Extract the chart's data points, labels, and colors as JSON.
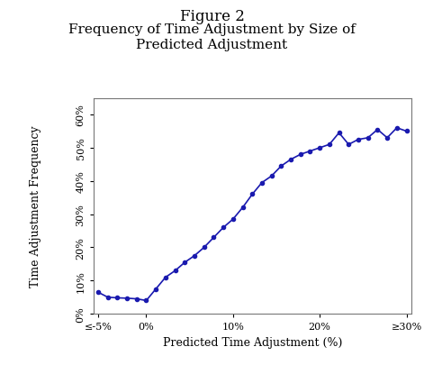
{
  "title_line1": "Figure 2",
  "title_line2": "Frequency of Time Adjustment by Size of\nPredicted Adjustment",
  "xlabel": "Predicted Time Adjustment (%)",
  "ylabel": "Time Adjustment Frequency",
  "line_color": "#1a1aaf",
  "marker": "o",
  "marker_size": 3,
  "background_color": "#ffffff",
  "plot_bg_color": "#ffffff",
  "x_tick_labels": [
    "≤-5%",
    "0%",
    "10%",
    "20%",
    "≥30%"
  ],
  "x_tick_positions": [
    0,
    5,
    14,
    23,
    32
  ],
  "ylim": [
    0,
    0.65
  ],
  "yticks": [
    0.0,
    0.1,
    0.2,
    0.3,
    0.4,
    0.5,
    0.6
  ],
  "ytick_labels": [
    "0%",
    "10%",
    "20%",
    "30%",
    "40%",
    "50%",
    "60%"
  ],
  "x_values": [
    0,
    1,
    2,
    3,
    4,
    5,
    6,
    7,
    8,
    9,
    10,
    11,
    12,
    13,
    14,
    15,
    16,
    17,
    18,
    19,
    20,
    21,
    22,
    23,
    24,
    25,
    26,
    27,
    28,
    29,
    30,
    31,
    32
  ],
  "y_values": [
    0.065,
    0.05,
    0.048,
    0.047,
    0.045,
    0.04,
    0.075,
    0.11,
    0.13,
    0.155,
    0.175,
    0.2,
    0.23,
    0.26,
    0.285,
    0.32,
    0.36,
    0.395,
    0.415,
    0.445,
    0.465,
    0.48,
    0.49,
    0.5,
    0.51,
    0.545,
    0.51,
    0.525,
    0.53,
    0.555,
    0.53,
    0.56,
    0.55
  ]
}
